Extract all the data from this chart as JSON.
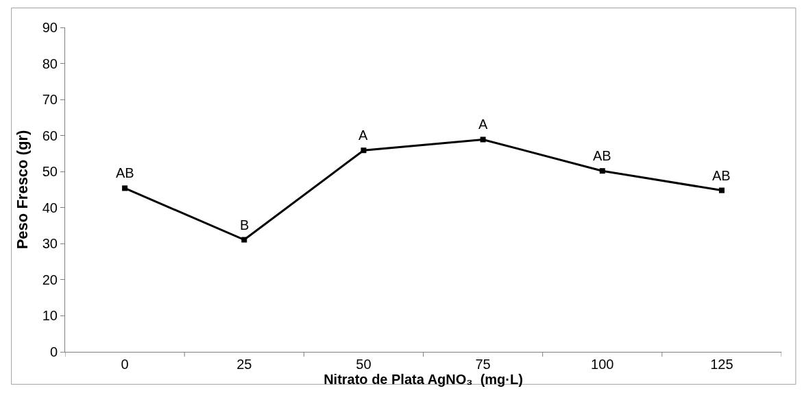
{
  "chart_data": {
    "type": "line",
    "xlabel": "Nitrato de Plata AgNO₃  (mg·L)",
    "ylabel": "Peso Fresco (gr)",
    "categories": [
      "0",
      "25",
      "50",
      "75",
      "100",
      "125"
    ],
    "series": [
      {
        "color": "#000000",
        "values": [
          45.4,
          31.1,
          55.9,
          58.9,
          50.2,
          44.8
        ]
      }
    ],
    "ylim": [
      0,
      90
    ],
    "yticks": [
      0,
      10,
      20,
      30,
      40,
      50,
      60,
      70,
      80,
      90
    ],
    "legend": false,
    "marker": "square",
    "line_style": "solid",
    "annotations": [
      {
        "text": "AB",
        "x": "0",
        "y": 45.4
      },
      {
        "text": "B",
        "x": "25",
        "y": 31.1
      },
      {
        "text": "A",
        "x": "50",
        "y": 55.9
      },
      {
        "text": "A",
        "x": "75",
        "y": 58.9
      },
      {
        "text": "AB",
        "x": "100",
        "y": 50.2
      },
      {
        "text": "AB",
        "x": "125",
        "y": 44.8
      }
    ]
  }
}
